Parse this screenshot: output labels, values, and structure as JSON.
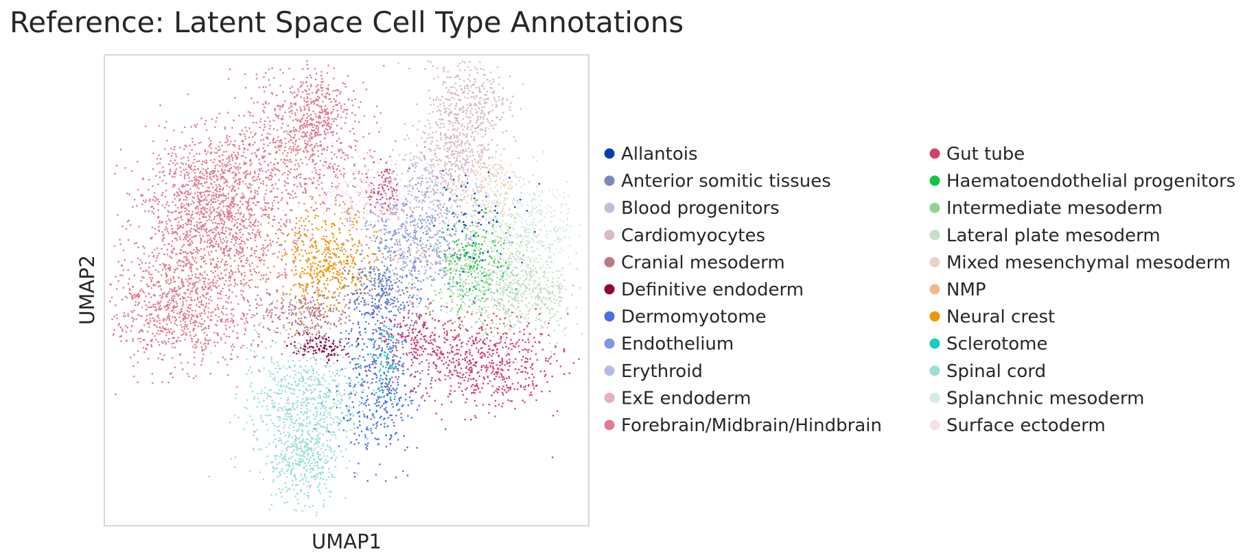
{
  "chart_data": {
    "type": "scatter",
    "title": "Reference: Latent Space Cell Type Annotations",
    "xlabel": "UMAP1",
    "ylabel": "UMAP2",
    "grid": false,
    "ticks": false,
    "legend_placement": "right",
    "legend_columns": 2,
    "categories": [
      {
        "name": "Allantois",
        "color": "#023eb0"
      },
      {
        "name": "Anterior somitic tissues",
        "color": "#7f87b6"
      },
      {
        "name": "Blood progenitors",
        "color": "#bec1d4"
      },
      {
        "name": "Cardiomyocytes",
        "color": "#d6bbc0"
      },
      {
        "name": "Cranial mesoderm",
        "color": "#bb7784"
      },
      {
        "name": "Definitive endoderm",
        "color": "#8e063b"
      },
      {
        "name": "Dermomyotome",
        "color": "#4a6fe3"
      },
      {
        "name": "Endothelium",
        "color": "#8595e1"
      },
      {
        "name": "Erythroid",
        "color": "#b5bbe3"
      },
      {
        "name": "ExE endoderm",
        "color": "#e6afb9"
      },
      {
        "name": "Forebrain/Midbrain/Hindbrain",
        "color": "#e07b91"
      },
      {
        "name": "Gut tube",
        "color": "#d33f6a"
      },
      {
        "name": "Haematoendothelial progenitors",
        "color": "#11c638"
      },
      {
        "name": "Intermediate mesoderm",
        "color": "#8dd593"
      },
      {
        "name": "Lateral plate mesoderm",
        "color": "#c6dec7"
      },
      {
        "name": "Mixed mesenchymal mesoderm",
        "color": "#ead3c6"
      },
      {
        "name": "NMP",
        "color": "#f0b98d"
      },
      {
        "name": "Neural crest",
        "color": "#ef9708"
      },
      {
        "name": "Sclerotome",
        "color": "#0fcfc0"
      },
      {
        "name": "Spinal cord",
        "color": "#9cded6"
      },
      {
        "name": "Splanchnic mesoderm",
        "color": "#d5eae7"
      },
      {
        "name": "Surface ectoderm",
        "color": "#f3e1eb"
      }
    ]
  }
}
